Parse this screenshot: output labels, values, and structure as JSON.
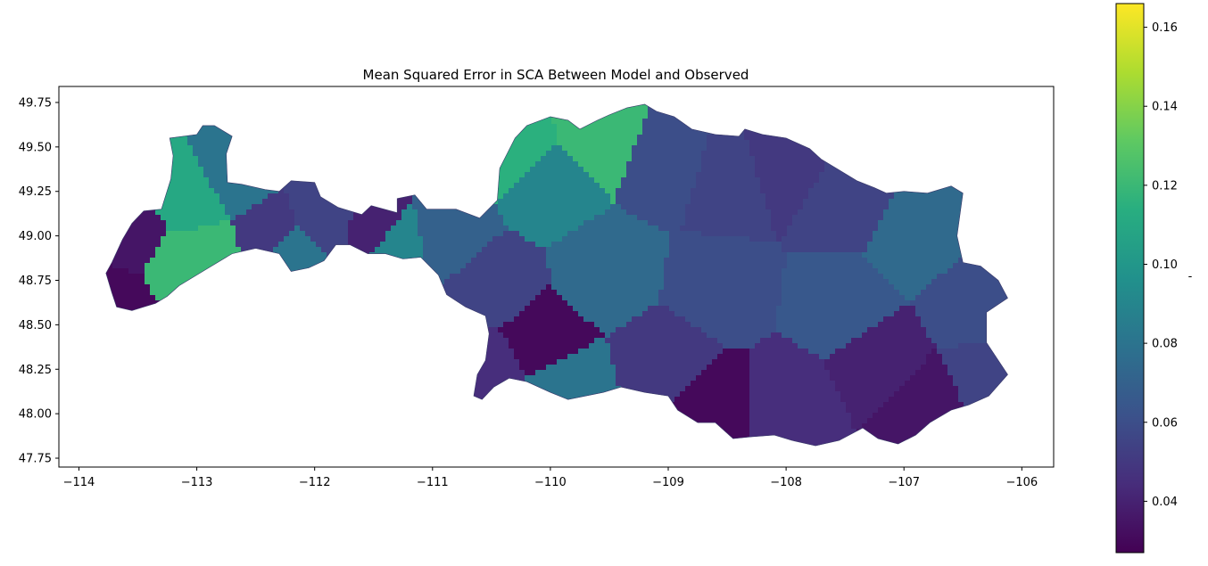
{
  "chart_data": {
    "type": "choropleth",
    "title": "Mean Squared Error in SCA Between Model and Observed",
    "xlabel": "",
    "ylabel": "",
    "xlim": [
      -114.17,
      -105.73
    ],
    "ylim": [
      47.7,
      49.84
    ],
    "xticks": [
      -114,
      -113,
      -112,
      -111,
      -110,
      -109,
      -108,
      -107,
      -106
    ],
    "yticks": [
      47.75,
      48.0,
      48.25,
      48.5,
      48.75,
      49.0,
      49.25,
      49.5,
      49.75
    ],
    "xtick_labels": [
      "−114",
      "−113",
      "−112",
      "−111",
      "−110",
      "−109",
      "−108",
      "−107",
      "−106"
    ],
    "ytick_labels": [
      "47.75",
      "48.00",
      "48.25",
      "48.50",
      "48.75",
      "49.00",
      "49.25",
      "49.50",
      "49.75"
    ],
    "colorbar": {
      "colormap": "viridis",
      "range": [
        0.027,
        0.166
      ],
      "ticks": [
        0.04,
        0.06,
        0.08,
        0.1,
        0.12,
        0.14,
        0.16
      ],
      "tick_labels": [
        "0.04",
        "0.06",
        "0.08",
        "0.10",
        "0.12",
        "0.14",
        "0.16"
      ],
      "label": "-"
    },
    "regions": [
      {
        "lon": -113.6,
        "lat": 48.7,
        "value": 0.03
      },
      {
        "lon": -113.5,
        "lat": 48.9,
        "value": 0.035
      },
      {
        "lon": -113.3,
        "lat": 48.82,
        "value": 0.12
      },
      {
        "lon": -113.0,
        "lat": 49.2,
        "value": 0.11
      },
      {
        "lon": -112.9,
        "lat": 48.9,
        "value": 0.12
      },
      {
        "lon": -112.7,
        "lat": 49.3,
        "value": 0.08
      },
      {
        "lon": -112.4,
        "lat": 49.0,
        "value": 0.05
      },
      {
        "lon": -112.2,
        "lat": 48.9,
        "value": 0.08
      },
      {
        "lon": -111.9,
        "lat": 49.1,
        "value": 0.055
      },
      {
        "lon": -111.5,
        "lat": 49.05,
        "value": 0.04
      },
      {
        "lon": -111.3,
        "lat": 48.95,
        "value": 0.09
      },
      {
        "lon": -110.9,
        "lat": 49.0,
        "value": 0.07
      },
      {
        "lon": -110.3,
        "lat": 49.5,
        "value": 0.115
      },
      {
        "lon": -110.0,
        "lat": 49.3,
        "value": 0.09
      },
      {
        "lon": -109.6,
        "lat": 49.55,
        "value": 0.12
      },
      {
        "lon": -109.0,
        "lat": 49.4,
        "value": 0.06
      },
      {
        "lon": -108.5,
        "lat": 49.3,
        "value": 0.055
      },
      {
        "lon": -108.0,
        "lat": 49.4,
        "value": 0.05
      },
      {
        "lon": -107.5,
        "lat": 49.2,
        "value": 0.055
      },
      {
        "lon": -106.9,
        "lat": 49.0,
        "value": 0.075
      },
      {
        "lon": -106.4,
        "lat": 48.6,
        "value": 0.06
      },
      {
        "lon": -110.5,
        "lat": 48.7,
        "value": 0.055
      },
      {
        "lon": -109.5,
        "lat": 48.8,
        "value": 0.075
      },
      {
        "lon": -108.6,
        "lat": 48.7,
        "value": 0.06
      },
      {
        "lon": -107.5,
        "lat": 48.6,
        "value": 0.065
      },
      {
        "lon": -110.1,
        "lat": 48.4,
        "value": 0.03
      },
      {
        "lon": -110.5,
        "lat": 48.25,
        "value": 0.045
      },
      {
        "lon": -109.9,
        "lat": 48.15,
        "value": 0.08
      },
      {
        "lon": -109.0,
        "lat": 48.3,
        "value": 0.05
      },
      {
        "lon": -108.6,
        "lat": 48.05,
        "value": 0.03
      },
      {
        "lon": -108.0,
        "lat": 48.05,
        "value": 0.045
      },
      {
        "lon": -107.2,
        "lat": 48.3,
        "value": 0.04
      },
      {
        "lon": -106.8,
        "lat": 48.05,
        "value": 0.035
      },
      {
        "lon": -106.3,
        "lat": 48.2,
        "value": 0.055
      }
    ]
  }
}
